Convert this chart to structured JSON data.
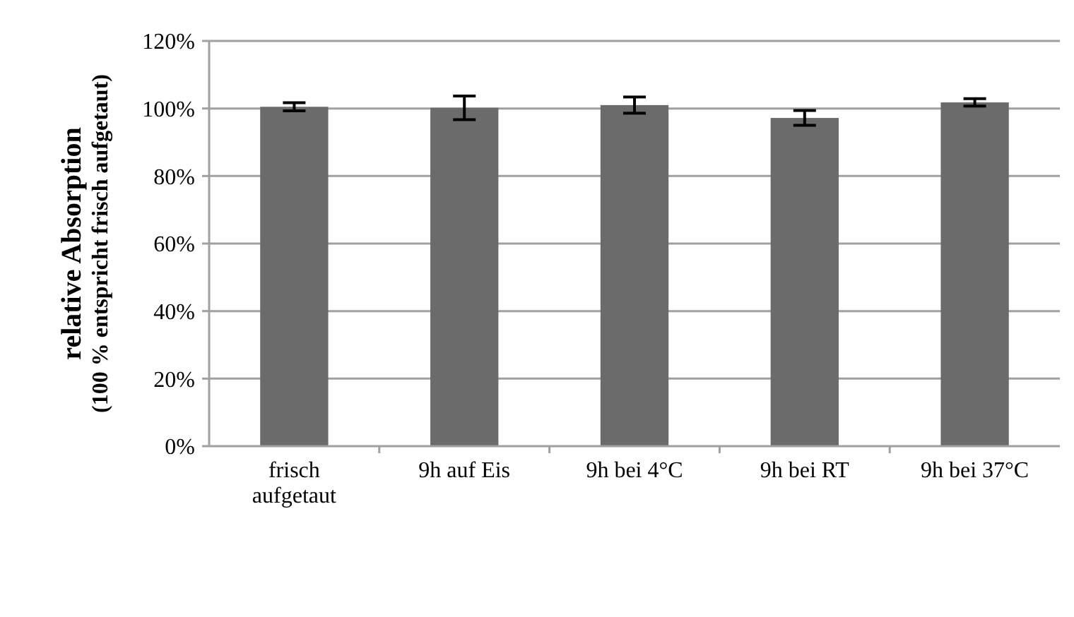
{
  "chart_data": {
    "type": "bar",
    "ylabel": "relative Absorption\n(100 % entspricht frisch aufgetaut)",
    "categories": [
      "frisch\naufgetaut",
      "9h auf Eis",
      "9h bei 4°C",
      "9h bei RT",
      "9h bei 37°C"
    ],
    "values": [
      100.5,
      100.2,
      101,
      97.2,
      101.8
    ],
    "errors": [
      1.2,
      3.5,
      2.4,
      2.2,
      1.1
    ],
    "color": "#6b6b6b",
    "ylim": [
      0,
      120
    ],
    "yticks": [
      {
        "value": 0,
        "label": "0%"
      },
      {
        "value": 20,
        "label": "20%"
      },
      {
        "value": 40,
        "label": "40%"
      },
      {
        "value": 60,
        "label": "60%"
      },
      {
        "value": 80,
        "label": "80%"
      },
      {
        "value": 100,
        "label": "100%"
      },
      {
        "value": 120,
        "label": "120%"
      }
    ],
    "grid": "y"
  }
}
